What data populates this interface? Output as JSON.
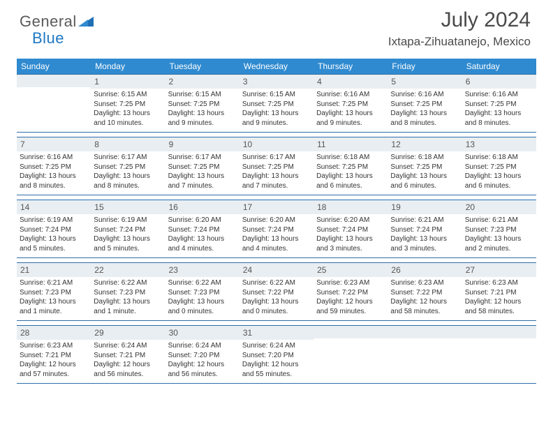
{
  "brand": {
    "part1": "General",
    "part2": "Blue"
  },
  "title": "July 2024",
  "subtitle": "Ixtapa-Zihuatanejo, Mexico",
  "colors": {
    "header_bg": "#2f8ad0",
    "rule": "#2f6ea8",
    "daynum_bg": "#e9eef2",
    "text": "#3a3a3a"
  },
  "daynames": [
    "Sunday",
    "Monday",
    "Tuesday",
    "Wednesday",
    "Thursday",
    "Friday",
    "Saturday"
  ],
  "weeks": [
    [
      {
        "n": "",
        "sr": "",
        "ss": "",
        "dl": ""
      },
      {
        "n": "1",
        "sr": "Sunrise: 6:15 AM",
        "ss": "Sunset: 7:25 PM",
        "dl": "Daylight: 13 hours and 10 minutes."
      },
      {
        "n": "2",
        "sr": "Sunrise: 6:15 AM",
        "ss": "Sunset: 7:25 PM",
        "dl": "Daylight: 13 hours and 9 minutes."
      },
      {
        "n": "3",
        "sr": "Sunrise: 6:15 AM",
        "ss": "Sunset: 7:25 PM",
        "dl": "Daylight: 13 hours and 9 minutes."
      },
      {
        "n": "4",
        "sr": "Sunrise: 6:16 AM",
        "ss": "Sunset: 7:25 PM",
        "dl": "Daylight: 13 hours and 9 minutes."
      },
      {
        "n": "5",
        "sr": "Sunrise: 6:16 AM",
        "ss": "Sunset: 7:25 PM",
        "dl": "Daylight: 13 hours and 8 minutes."
      },
      {
        "n": "6",
        "sr": "Sunrise: 6:16 AM",
        "ss": "Sunset: 7:25 PM",
        "dl": "Daylight: 13 hours and 8 minutes."
      }
    ],
    [
      {
        "n": "7",
        "sr": "Sunrise: 6:16 AM",
        "ss": "Sunset: 7:25 PM",
        "dl": "Daylight: 13 hours and 8 minutes."
      },
      {
        "n": "8",
        "sr": "Sunrise: 6:17 AM",
        "ss": "Sunset: 7:25 PM",
        "dl": "Daylight: 13 hours and 8 minutes."
      },
      {
        "n": "9",
        "sr": "Sunrise: 6:17 AM",
        "ss": "Sunset: 7:25 PM",
        "dl": "Daylight: 13 hours and 7 minutes."
      },
      {
        "n": "10",
        "sr": "Sunrise: 6:17 AM",
        "ss": "Sunset: 7:25 PM",
        "dl": "Daylight: 13 hours and 7 minutes."
      },
      {
        "n": "11",
        "sr": "Sunrise: 6:18 AM",
        "ss": "Sunset: 7:25 PM",
        "dl": "Daylight: 13 hours and 6 minutes."
      },
      {
        "n": "12",
        "sr": "Sunrise: 6:18 AM",
        "ss": "Sunset: 7:25 PM",
        "dl": "Daylight: 13 hours and 6 minutes."
      },
      {
        "n": "13",
        "sr": "Sunrise: 6:18 AM",
        "ss": "Sunset: 7:25 PM",
        "dl": "Daylight: 13 hours and 6 minutes."
      }
    ],
    [
      {
        "n": "14",
        "sr": "Sunrise: 6:19 AM",
        "ss": "Sunset: 7:24 PM",
        "dl": "Daylight: 13 hours and 5 minutes."
      },
      {
        "n": "15",
        "sr": "Sunrise: 6:19 AM",
        "ss": "Sunset: 7:24 PM",
        "dl": "Daylight: 13 hours and 5 minutes."
      },
      {
        "n": "16",
        "sr": "Sunrise: 6:20 AM",
        "ss": "Sunset: 7:24 PM",
        "dl": "Daylight: 13 hours and 4 minutes."
      },
      {
        "n": "17",
        "sr": "Sunrise: 6:20 AM",
        "ss": "Sunset: 7:24 PM",
        "dl": "Daylight: 13 hours and 4 minutes."
      },
      {
        "n": "18",
        "sr": "Sunrise: 6:20 AM",
        "ss": "Sunset: 7:24 PM",
        "dl": "Daylight: 13 hours and 3 minutes."
      },
      {
        "n": "19",
        "sr": "Sunrise: 6:21 AM",
        "ss": "Sunset: 7:24 PM",
        "dl": "Daylight: 13 hours and 3 minutes."
      },
      {
        "n": "20",
        "sr": "Sunrise: 6:21 AM",
        "ss": "Sunset: 7:23 PM",
        "dl": "Daylight: 13 hours and 2 minutes."
      }
    ],
    [
      {
        "n": "21",
        "sr": "Sunrise: 6:21 AM",
        "ss": "Sunset: 7:23 PM",
        "dl": "Daylight: 13 hours and 1 minute."
      },
      {
        "n": "22",
        "sr": "Sunrise: 6:22 AM",
        "ss": "Sunset: 7:23 PM",
        "dl": "Daylight: 13 hours and 1 minute."
      },
      {
        "n": "23",
        "sr": "Sunrise: 6:22 AM",
        "ss": "Sunset: 7:23 PM",
        "dl": "Daylight: 13 hours and 0 minutes."
      },
      {
        "n": "24",
        "sr": "Sunrise: 6:22 AM",
        "ss": "Sunset: 7:22 PM",
        "dl": "Daylight: 13 hours and 0 minutes."
      },
      {
        "n": "25",
        "sr": "Sunrise: 6:23 AM",
        "ss": "Sunset: 7:22 PM",
        "dl": "Daylight: 12 hours and 59 minutes."
      },
      {
        "n": "26",
        "sr": "Sunrise: 6:23 AM",
        "ss": "Sunset: 7:22 PM",
        "dl": "Daylight: 12 hours and 58 minutes."
      },
      {
        "n": "27",
        "sr": "Sunrise: 6:23 AM",
        "ss": "Sunset: 7:21 PM",
        "dl": "Daylight: 12 hours and 58 minutes."
      }
    ],
    [
      {
        "n": "28",
        "sr": "Sunrise: 6:23 AM",
        "ss": "Sunset: 7:21 PM",
        "dl": "Daylight: 12 hours and 57 minutes."
      },
      {
        "n": "29",
        "sr": "Sunrise: 6:24 AM",
        "ss": "Sunset: 7:21 PM",
        "dl": "Daylight: 12 hours and 56 minutes."
      },
      {
        "n": "30",
        "sr": "Sunrise: 6:24 AM",
        "ss": "Sunset: 7:20 PM",
        "dl": "Daylight: 12 hours and 56 minutes."
      },
      {
        "n": "31",
        "sr": "Sunrise: 6:24 AM",
        "ss": "Sunset: 7:20 PM",
        "dl": "Daylight: 12 hours and 55 minutes."
      },
      {
        "n": "",
        "sr": "",
        "ss": "",
        "dl": ""
      },
      {
        "n": "",
        "sr": "",
        "ss": "",
        "dl": ""
      },
      {
        "n": "",
        "sr": "",
        "ss": "",
        "dl": ""
      }
    ]
  ]
}
